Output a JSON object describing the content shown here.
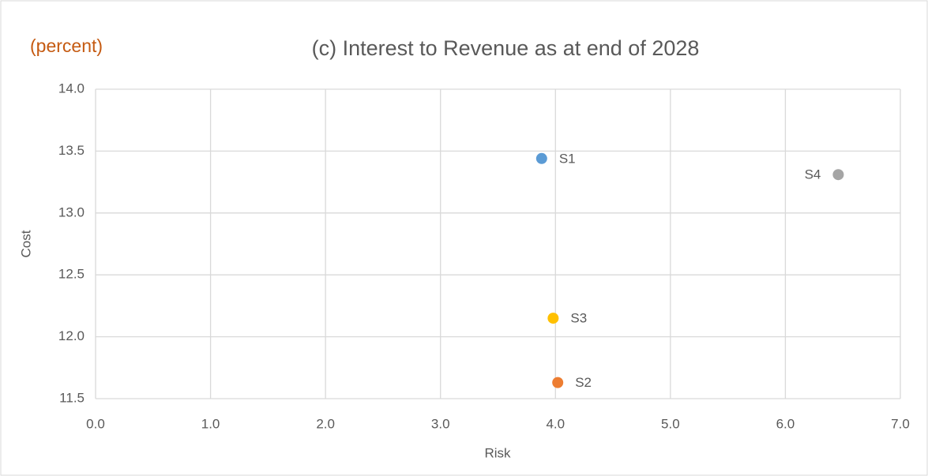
{
  "chart_data": {
    "type": "scatter",
    "title": "(c) Interest to Revenue as at end of 2028",
    "annotation": "(percent)",
    "x_label": "Risk",
    "y_label": "Cost",
    "series": [
      {
        "name": "S1",
        "color": "#5b9bd5",
        "x": [
          3.88
        ],
        "values": [
          13.44
        ],
        "label_side": "right"
      },
      {
        "name": "S2",
        "color": "#ed7d31",
        "x": [
          4.02
        ],
        "values": [
          11.63
        ],
        "label_side": "right"
      },
      {
        "name": "S3",
        "color": "#ffc000",
        "x": [
          3.98
        ],
        "values": [
          12.15
        ],
        "label_side": "right"
      },
      {
        "name": "S4",
        "color": "#a5a5a5",
        "x": [
          6.46
        ],
        "values": [
          13.31
        ],
        "label_side": "left"
      }
    ],
    "xlim": [
      0,
      7
    ],
    "xticks": [
      {
        "value": 0,
        "label": "0.0"
      },
      {
        "value": 1,
        "label": "1.0"
      },
      {
        "value": 2,
        "label": "2.0"
      },
      {
        "value": 3,
        "label": "3.0"
      },
      {
        "value": 4,
        "label": "4.0"
      },
      {
        "value": 5,
        "label": "5.0"
      },
      {
        "value": 6,
        "label": "6.0"
      },
      {
        "value": 7,
        "label": "7.0"
      }
    ],
    "ylim": [
      11.5,
      14
    ],
    "yticks": [
      11.5,
      {
        "value": 12,
        "label": "12.0"
      },
      12.5,
      {
        "value": 13,
        "label": "13.0"
      },
      13.5,
      {
        "value": 14,
        "label": "14.0"
      }
    ],
    "grid": true
  }
}
